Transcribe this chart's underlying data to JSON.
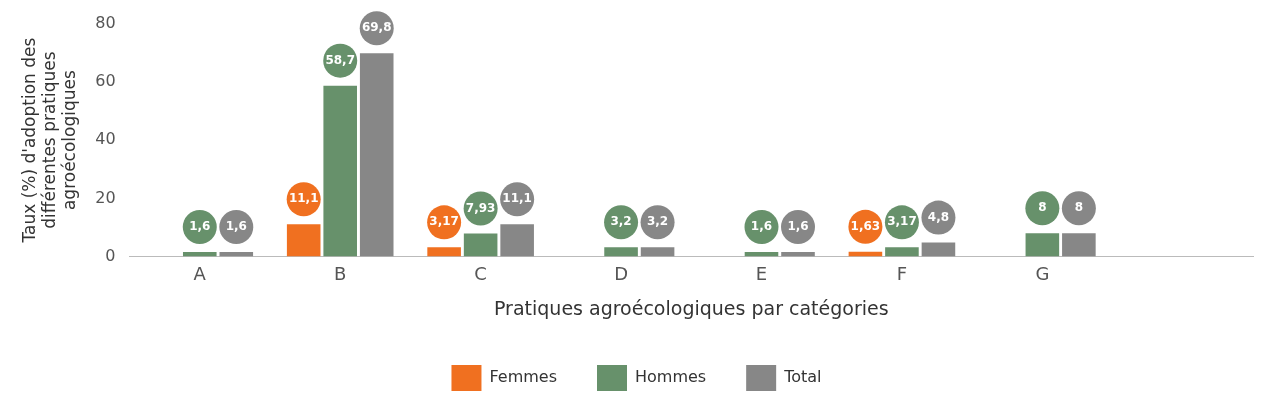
{
  "chart_data": {
    "type": "bar",
    "xlabel": "Pratiques agroécologiques par catégories",
    "ylabel": "Taux (%) d'adoption des différentes pratiques agroécologiques",
    "categories": [
      "A",
      "B",
      "C",
      "D",
      "E",
      "F",
      "G",
      null
    ],
    "series": [
      {
        "name": "Femmes",
        "color": "#f07020",
        "values": [
          null,
          11.1,
          3.17,
          null,
          null,
          1.63,
          null,
          null
        ],
        "value_labels": [
          null,
          "11,1",
          "3,17",
          null,
          null,
          "1,63",
          null,
          null
        ]
      },
      {
        "name": "Hommes",
        "color": "#67916b",
        "values": [
          1.6,
          58.7,
          7.93,
          3.2,
          1.6,
          3.17,
          8,
          null
        ],
        "value_labels": [
          "1,6",
          "58,7",
          "7,93",
          "3,2",
          "1,6",
          "3,17",
          "8",
          null
        ]
      },
      {
        "name": "Total",
        "color": "#878787",
        "values": [
          1.6,
          69.8,
          11.1,
          3.2,
          1.6,
          4.8,
          8,
          null
        ],
        "value_labels": [
          "1,6",
          "69,8",
          "11,1",
          "3,2",
          "1,6",
          "4,8",
          "8",
          null
        ]
      }
    ],
    "ylim": [
      0,
      80
    ],
    "yticks": [
      0,
      20,
      40,
      60,
      80
    ],
    "grid": false,
    "legend": "bottom"
  }
}
